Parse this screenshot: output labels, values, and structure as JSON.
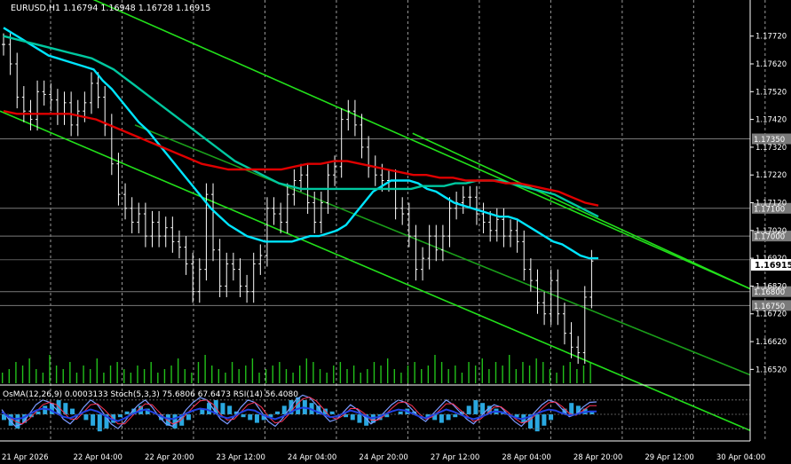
{
  "chart_data": {
    "type": "line",
    "symbol_header": "EURUSD,H1  1.16794 1.16948 1.16728 1.16915",
    "indicator_header": "OsMA(12,26,9) 0.0003133  Stoch(5,3,3) 75.6806 67.6473  RSI(14) 56.4080",
    "ylim": [
      1.1647,
      1.1785
    ],
    "y_ticks": [
      "1.17720",
      "1.17620",
      "1.17520",
      "1.17420",
      "1.17320",
      "1.17220",
      "1.17120",
      "1.17020",
      "1.16920",
      "1.16820",
      "1.16720",
      "1.16620",
      "1.16520"
    ],
    "x_ticks": [
      "21 Apr 2026",
      "22 Apr 04:00",
      "22 Apr 20:00",
      "23 Apr 12:00",
      "24 Apr 04:00",
      "24 Apr 20:00",
      "27 Apr 12:00",
      "28 Apr 04:00",
      "28 Apr 20:00",
      "29 Apr 12:00",
      "30 Apr 04:00"
    ],
    "price_levels": [
      {
        "label": "1.17350",
        "value": 1.1735
      },
      {
        "label": "1.17100",
        "value": 1.171
      },
      {
        "label": "1.17000",
        "value": 1.17
      },
      {
        "label": "1.16800",
        "value": 1.168
      },
      {
        "label": "1.16750",
        "value": 1.1675
      }
    ],
    "current_price": {
      "label": "1.16915",
      "value": 1.16915
    },
    "close": [
      1.1769,
      1.1762,
      1.175,
      1.1745,
      1.1742,
      1.1752,
      1.1751,
      1.1749,
      1.1744,
      1.1748,
      1.174,
      1.1745,
      1.1748,
      1.1755,
      1.175,
      1.174,
      1.1726,
      1.1715,
      1.171,
      1.1705,
      1.1708,
      1.17,
      1.1705,
      1.17,
      1.1703,
      1.1698,
      1.1696,
      1.169,
      1.168,
      1.1688,
      1.1715,
      1.1695,
      1.1682,
      1.169,
      1.1688,
      1.1682,
      1.168,
      1.169,
      1.1693,
      1.171,
      1.1708,
      1.1705,
      1.1715,
      1.172,
      1.1722,
      1.1712,
      1.1705,
      1.1712,
      1.1722,
      1.1725,
      1.1742,
      1.1745,
      1.174,
      1.1732,
      1.1725,
      1.1722,
      1.172,
      1.172,
      1.171,
      1.1708,
      1.17,
      1.1688,
      1.1692,
      1.17,
      1.1695,
      1.17,
      1.171,
      1.1712,
      1.1714,
      1.1714,
      1.1708,
      1.1705,
      1.1702,
      1.1706,
      1.17,
      1.1702,
      1.1698,
      1.1688,
      1.1684,
      1.1676,
      1.1672,
      1.1684,
      1.1672,
      1.1665,
      1.166,
      1.1658,
      1.1678,
      1.1691
    ],
    "series": [
      {
        "color": "#00e5ff",
        "values": [
          1.1775,
          1.1773,
          1.1771,
          1.1769,
          1.1767,
          1.1765,
          1.1764,
          1.1763,
          1.1762,
          1.1761,
          1.176,
          1.1756,
          1.1753,
          1.1749,
          1.1745,
          1.1741,
          1.1738,
          1.1734,
          1.173,
          1.1726,
          1.1722,
          1.1718,
          1.1714,
          1.171,
          1.1707,
          1.1704,
          1.1702,
          1.17,
          1.1699,
          1.1698,
          1.1698,
          1.1698,
          1.1698,
          1.1699,
          1.17,
          1.17,
          1.1701,
          1.1702,
          1.1704,
          1.1708,
          1.1712,
          1.1716,
          1.1718,
          1.172,
          1.172,
          1.172,
          1.1719,
          1.1717,
          1.1716,
          1.1714,
          1.1712,
          1.1711,
          1.171,
          1.1709,
          1.1708,
          1.1707,
          1.1707,
          1.1706,
          1.1704,
          1.1702,
          1.17,
          1.1698,
          1.1697,
          1.1695,
          1.1693,
          1.1692,
          1.1692
        ]
      },
      {
        "color": "#00c8a0",
        "values": [
          1.1772,
          1.1771,
          1.177,
          1.1769,
          1.1768,
          1.1767,
          1.1766,
          1.1765,
          1.1764,
          1.1762,
          1.176,
          1.1757,
          1.1754,
          1.1751,
          1.1748,
          1.1745,
          1.1742,
          1.1739,
          1.1736,
          1.1733,
          1.173,
          1.1727,
          1.1725,
          1.1723,
          1.1721,
          1.1719,
          1.1718,
          1.1717,
          1.1717,
          1.1717,
          1.1717,
          1.1717,
          1.1717,
          1.1717,
          1.1717,
          1.1717,
          1.1717,
          1.1717,
          1.1718,
          1.1718,
          1.1718,
          1.1719,
          1.1719,
          1.172,
          1.172,
          1.172,
          1.1719,
          1.1718,
          1.1717,
          1.1716,
          1.1715,
          1.1713,
          1.1711,
          1.1709,
          1.1707
        ]
      },
      {
        "color": "#e00000",
        "values": [
          1.1745,
          1.1744,
          1.1744,
          1.1744,
          1.1744,
          1.1744,
          1.1743,
          1.1742,
          1.174,
          1.1738,
          1.1736,
          1.1734,
          1.1732,
          1.173,
          1.1728,
          1.1726,
          1.1725,
          1.1724,
          1.1724,
          1.1724,
          1.1724,
          1.1724,
          1.1725,
          1.1726,
          1.1726,
          1.1727,
          1.1727,
          1.1726,
          1.1725,
          1.1724,
          1.1723,
          1.1722,
          1.1722,
          1.1721,
          1.1721,
          1.172,
          1.172,
          1.172,
          1.1719,
          1.1719,
          1.1718,
          1.1717,
          1.1716,
          1.1714,
          1.1712,
          1.1711
        ]
      }
    ],
    "channels": [
      {
        "color": "#22e01a",
        "from": [
          0.0,
          1.18
        ],
        "to": [
          1.0,
          1.1681
        ]
      },
      {
        "color": "#22e01a",
        "from": [
          0.0,
          1.1745
        ],
        "to": [
          1.0,
          1.163
        ]
      },
      {
        "color": "#22e01a",
        "from": [
          0.55,
          1.1737
        ],
        "to": [
          1.0,
          1.1681
        ]
      },
      {
        "color": "#1a9e1a",
        "from": [
          0.18,
          1.174
        ],
        "to": [
          1.0,
          1.165
        ]
      }
    ],
    "volumes": [
      3,
      4,
      6,
      5,
      7,
      4,
      3,
      8,
      5,
      4,
      6,
      3,
      5,
      4,
      7,
      3,
      5,
      6,
      4,
      3,
      5,
      4,
      6,
      3,
      4,
      5,
      7,
      4,
      3,
      6,
      8,
      5,
      4,
      3,
      6,
      4,
      5,
      7,
      3,
      4,
      5,
      6,
      4,
      3,
      5,
      7,
      6,
      4,
      3,
      5,
      6,
      4,
      5,
      3,
      4,
      6,
      5,
      7,
      4,
      3,
      5,
      6,
      4,
      5,
      8,
      6,
      4,
      5,
      3,
      6,
      5,
      7,
      4,
      6,
      5,
      8,
      4,
      6,
      5,
      7,
      6,
      4,
      3,
      5,
      6,
      4,
      5,
      6
    ],
    "osma": [
      -2,
      -4,
      -5,
      -3,
      -1,
      1,
      3,
      4,
      5,
      4,
      2,
      0,
      -2,
      -4,
      -6,
      -5,
      -3,
      -1,
      1,
      2,
      3,
      2,
      0,
      -2,
      -4,
      -5,
      -4,
      -2,
      0,
      2,
      4,
      5,
      4,
      3,
      1,
      -1,
      -2,
      -3,
      -2,
      -1,
      1,
      3,
      5,
      6,
      5,
      4,
      3,
      2,
      1,
      0,
      -1,
      -2,
      -3,
      -4,
      -3,
      -2,
      -1,
      0,
      1,
      2,
      1,
      0,
      -1,
      -2,
      -3,
      -2,
      -1,
      1,
      3,
      5,
      4,
      3,
      2,
      1,
      0,
      -1,
      -3,
      -5,
      -6,
      -4,
      -2,
      0,
      2,
      4,
      3,
      2,
      1
    ],
    "stoch_main": [
      60,
      40,
      25,
      30,
      50,
      70,
      80,
      75,
      60,
      40,
      30,
      45,
      65,
      80,
      70,
      50,
      30,
      20,
      35,
      55,
      70,
      80,
      65,
      45,
      30,
      25,
      40,
      60,
      75,
      85,
      80,
      60,
      40,
      30,
      45,
      65,
      80,
      75,
      55,
      35,
      25,
      40,
      60,
      80,
      90,
      85,
      70,
      50,
      35,
      40,
      55,
      70,
      60,
      45,
      30,
      40,
      55,
      70,
      80,
      75,
      60,
      45,
      35,
      50,
      65,
      80,
      70,
      55,
      40,
      30,
      45,
      60,
      70,
      65,
      50,
      35,
      25,
      40,
      55,
      70,
      80,
      75,
      60,
      45,
      50,
      65,
      75,
      76
    ],
    "stoch_signal": [
      55,
      45,
      35,
      30,
      40,
      55,
      70,
      75,
      70,
      55,
      40,
      40,
      55,
      70,
      72,
      60,
      45,
      30,
      30,
      45,
      60,
      72,
      70,
      55,
      40,
      30,
      35,
      50,
      65,
      78,
      80,
      70,
      50,
      38,
      40,
      55,
      70,
      75,
      65,
      45,
      32,
      35,
      50,
      68,
      82,
      86,
      78,
      62,
      45,
      40,
      48,
      62,
      62,
      52,
      38,
      38,
      48,
      62,
      74,
      76,
      68,
      52,
      40,
      45,
      58,
      72,
      72,
      60,
      48,
      35,
      40,
      52,
      65,
      66,
      55,
      42,
      32,
      35,
      48,
      62,
      74,
      76,
      66,
      52,
      48,
      58,
      68,
      68
    ],
    "rsi": [
      55,
      45,
      40,
      42,
      50,
      58,
      62,
      60,
      52,
      45,
      42,
      48,
      55,
      60,
      56,
      48,
      40,
      36,
      42,
      50,
      56,
      60,
      55,
      48,
      42,
      40,
      45,
      52,
      58,
      62,
      60,
      54,
      46,
      42,
      46,
      54,
      60,
      58,
      50,
      44,
      40,
      45,
      52,
      60,
      64,
      62,
      56,
      50,
      44,
      46,
      52,
      58,
      54,
      48,
      42,
      44,
      50,
      56,
      60,
      58,
      52,
      46,
      42,
      48,
      54,
      60,
      56,
      50,
      44,
      40,
      44,
      50,
      56,
      55,
      50,
      44,
      40,
      44,
      50,
      56,
      60,
      58,
      52,
      48,
      50,
      54,
      56,
      56
    ]
  }
}
